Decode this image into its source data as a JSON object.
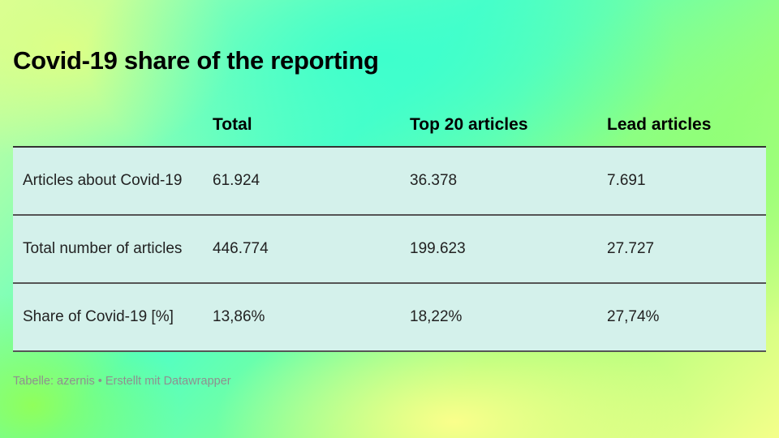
{
  "title": "Covid-19 share of the reporting",
  "chart_data": {
    "type": "table",
    "title": "Covid-19 share of the reporting",
    "columns": [
      "",
      "Total",
      "Top 20 articles",
      "Lead articles"
    ],
    "rows": [
      {
        "label": "Articles about Covid-19",
        "values": [
          "61.924",
          "36.378",
          "7.691"
        ]
      },
      {
        "label": "Total number of articles",
        "values": [
          "446.774",
          "199.623",
          "27.727"
        ]
      },
      {
        "label": "Share of Covid-19 [%]",
        "values": [
          "13,86%",
          "18,22%",
          "27,74%"
        ]
      }
    ]
  },
  "footer": "Tabelle: azernis • Erstellt mit Datawrapper"
}
